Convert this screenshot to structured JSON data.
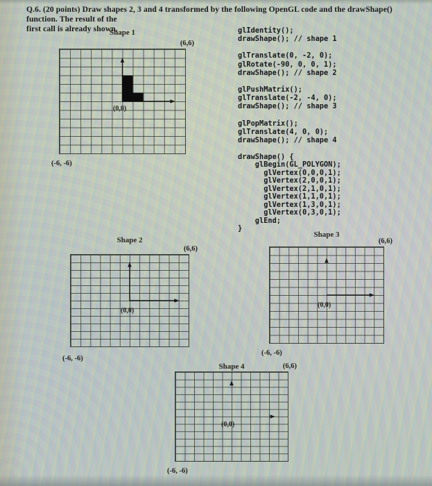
{
  "question": {
    "line1": "Q.6. (20 points) Draw shapes 2, 3 and 4 transformed by the following OpenGL code and the drawShape() function. The result of the",
    "line2": "first call is already shown."
  },
  "code": {
    "transform_calls": "glIdentity();\ndrawShape(); // shape 1\n\nglTranslate(0, -2, 0);\nglRotate(-90, 0, 0, 1);\ndrawShape(); // shape 2\n\nglPushMatrix();\nglTranslate(-2, -4, 0);\ndrawShape(); // shape 3\n\nglPopMatrix();\nglTranslate(4, 0, 0);\ndrawShape(); // shape 4",
    "draw_shape_fn": "drawShape() {\n    glBegin(GL_POLYGON);\n      glVertex(0,0,0,1);\n      glVertex(2,0,0,1);\n      glVertex(2,1,0,1);\n      glVertex(1,1,0,1);\n      glVertex(1,3,0,1);\n      glVertex(0,3,0,1);\n    glEnd;\n}"
  },
  "panels": [
    {
      "title": "Shape 1",
      "corner_top_right": "(6,6)",
      "origin_label": "(0,0)",
      "corner_bottom_left": "(-6, -6)",
      "grid": {
        "cols": 12,
        "rows": 12,
        "x_range": [
          -6,
          6
        ],
        "y_range": [
          -6,
          6
        ]
      },
      "axes": {
        "vertical": {
          "to_y": 5,
          "line": true
        },
        "horizontal": {
          "to_x": 5,
          "line": true
        }
      },
      "shape_vertices": [
        [
          0,
          0
        ],
        [
          2,
          0
        ],
        [
          2,
          1
        ],
        [
          1,
          1
        ],
        [
          1,
          3
        ],
        [
          0,
          3
        ]
      ]
    },
    {
      "title": "Shape 2",
      "corner_top_right": "(6,6)",
      "origin_label": "(0,0)",
      "corner_bottom_left": "(-6, -6)",
      "grid": {
        "cols": 12,
        "rows": 12,
        "x_range": [
          -6,
          6
        ],
        "y_range": [
          -6,
          6
        ]
      },
      "axes": {
        "vertical": {
          "to_y": 5,
          "line": true
        },
        "horizontal": {
          "to_x": 5,
          "line": true
        }
      },
      "shape_vertices": null
    },
    {
      "title": "Shape 3",
      "corner_top_right": "(6,6)",
      "origin_label": "(0,0)",
      "corner_bottom_left": "(-6, -6)",
      "grid": {
        "cols": 12,
        "rows": 12,
        "x_range": [
          -6,
          6
        ],
        "y_range": [
          -6,
          6
        ]
      },
      "axes": {
        "vertical": {
          "to_y": 4.6,
          "line": false
        },
        "horizontal": {
          "to_x": 5,
          "line": true
        }
      },
      "shape_vertices": null
    },
    {
      "title": "Shape 4",
      "corner_top_right": "(6,6)",
      "origin_label": "(0,0)",
      "corner_bottom_left": "(-6, -6)",
      "grid": {
        "cols": 12,
        "rows": 12,
        "x_range": [
          -6,
          6
        ],
        "y_range": [
          -6,
          6
        ]
      },
      "axes": {
        "vertical": {
          "to_y": 4.8,
          "line": false
        },
        "horizontal": {
          "to_x": 4.6,
          "line": false
        }
      },
      "shape_vertices": null
    }
  ],
  "colors": {
    "paper_background": "#b2bfb6",
    "grid_line": "#3c4038",
    "ink": "#1b1b1b",
    "shape_fill": "#0c0c0c"
  }
}
